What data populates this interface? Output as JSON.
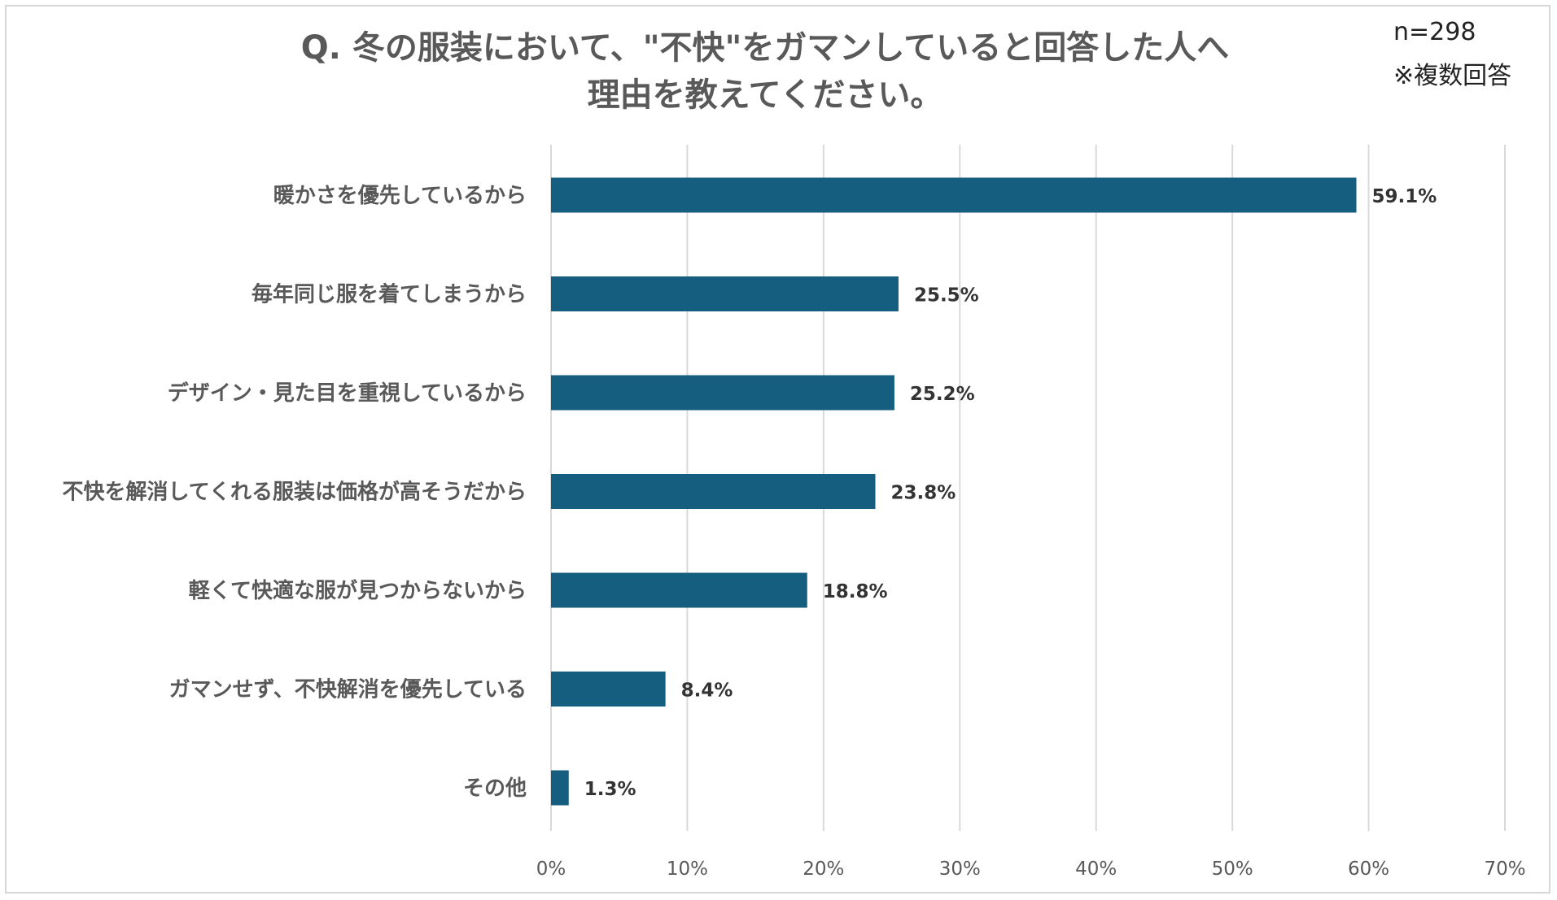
{
  "header": {
    "title_line1": "Q. 冬の服装において、\"不快\"をガマンしていると回答した人へ",
    "title_line2": "理由を教えてください。",
    "sample_size": "n=298",
    "note": "※複数回答"
  },
  "chart_data": {
    "type": "bar",
    "orientation": "horizontal",
    "title": "Q. 冬の服装において、\"不快\"をガマンしていると回答した人へ 理由を教えてください。",
    "categories": [
      "暖かさを優先しているから",
      "毎年同じ服を着てしまうから",
      "デザイン・見た目を重視しているから",
      "不快を解消してくれる服装は価格が高そうだから",
      "軽くて快適な服が見つからないから",
      "ガマンせず、不快解消を優先している",
      "その他"
    ],
    "values": [
      59.1,
      25.5,
      25.2,
      23.8,
      18.8,
      8.4,
      1.3
    ],
    "value_labels": [
      "59.1%",
      "25.5%",
      "25.2%",
      "23.8%",
      "18.8%",
      "8.4%",
      "1.3%"
    ],
    "xlim": [
      0,
      70
    ],
    "xticks": [
      0,
      10,
      20,
      30,
      40,
      50,
      60,
      70
    ],
    "xtick_labels": [
      "0%",
      "10%",
      "20%",
      "30%",
      "40%",
      "50%",
      "60%",
      "70%"
    ],
    "xlabel": "",
    "ylabel": "",
    "grid": "vertical",
    "bar_color": "#165e80",
    "grid_color": "#d9d9d9"
  }
}
